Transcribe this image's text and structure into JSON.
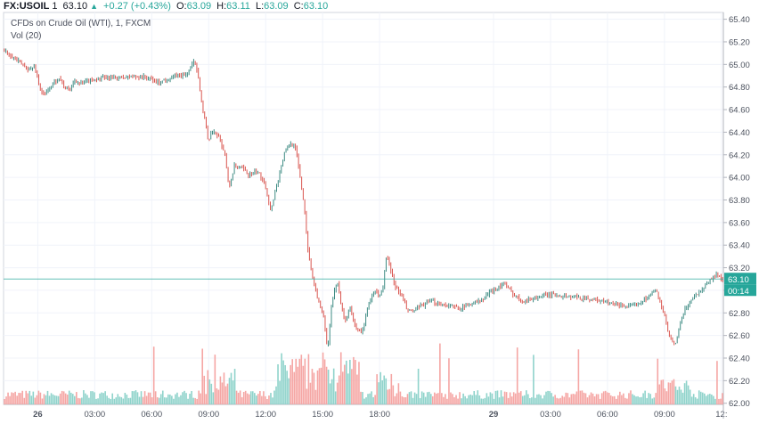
{
  "header": {
    "symbol": "FX:USOIL",
    "interval": "1",
    "last": "63.10",
    "change": "+0.27 (+0.43%)",
    "o_label": "O:",
    "o_value": "63.09",
    "h_label": "H:",
    "h_value": "63.11",
    "l_label": "L:",
    "l_value": "63.09",
    "c_label": "C:",
    "c_value": "63.10"
  },
  "legend": {
    "title": "CFDs on Crude Oil (WTI), 1, FXCM",
    "volume_indicator": "Vol (20)"
  },
  "price_badge": {
    "value": "63.10",
    "countdown": "00:14"
  },
  "colors": {
    "up": "#26a69a",
    "down": "#ef5350",
    "vol_up": "#8fd3cb",
    "vol_down": "#f5a6a4",
    "grid": "#f0f3fa",
    "price_line": "#26a69a",
    "axis_text": "#4c525e"
  },
  "chart_data": {
    "type": "line",
    "title": "CFDs on Crude Oil (WTI), 1, FXCM",
    "y_axis": {
      "ticks": [
        "65.40",
        "65.20",
        "65.00",
        "64.80",
        "64.60",
        "64.40",
        "64.20",
        "64.00",
        "63.80",
        "63.60",
        "63.40",
        "63.20",
        "63.00",
        "62.80",
        "62.60",
        "62.40",
        "62.20",
        "62.00"
      ],
      "range": [
        61.99,
        65.46
      ]
    },
    "x_axis": {
      "ticks": [
        "26",
        "03:00",
        "06:00",
        "09:00",
        "12:00",
        "15:00",
        "18:00",
        "29",
        "03:00",
        "06:00",
        "09:00",
        "12:"
      ],
      "tick_hours": [
        0,
        3,
        6,
        9,
        12,
        15,
        18,
        24,
        27,
        30,
        33,
        36
      ],
      "range_hours": [
        -1.8,
        36.1
      ]
    },
    "series": [
      {
        "values_by_hour": [
          [
            -1.8,
            65.12
          ],
          [
            -1.5,
            65.1
          ],
          [
            -1.2,
            65.06
          ],
          [
            -0.8,
            65.0
          ],
          [
            -0.4,
            64.95
          ],
          [
            -0.1,
            64.98
          ],
          [
            0.0,
            64.9
          ],
          [
            0.2,
            64.76
          ],
          [
            0.4,
            64.73
          ],
          [
            0.8,
            64.82
          ],
          [
            1.2,
            64.89
          ],
          [
            1.4,
            64.8
          ],
          [
            1.7,
            64.78
          ],
          [
            2.0,
            64.86
          ],
          [
            2.3,
            64.83
          ],
          [
            2.8,
            64.86
          ],
          [
            3.5,
            64.88
          ],
          [
            4.2,
            64.88
          ],
          [
            5.0,
            64.89
          ],
          [
            5.6,
            64.89
          ],
          [
            6.0,
            64.87
          ],
          [
            6.4,
            64.84
          ],
          [
            6.9,
            64.87
          ],
          [
            7.4,
            64.9
          ],
          [
            7.8,
            64.9
          ],
          [
            8.1,
            64.97
          ],
          [
            8.3,
            65.03
          ],
          [
            8.5,
            64.9
          ],
          [
            8.7,
            64.62
          ],
          [
            8.9,
            64.45
          ],
          [
            9.0,
            64.32
          ],
          [
            9.3,
            64.42
          ],
          [
            9.6,
            64.35
          ],
          [
            9.9,
            64.2
          ],
          [
            10.1,
            63.9
          ],
          [
            10.4,
            64.1
          ],
          [
            10.8,
            64.08
          ],
          [
            11.2,
            64.02
          ],
          [
            11.6,
            64.05
          ],
          [
            12.0,
            63.95
          ],
          [
            12.3,
            63.7
          ],
          [
            12.5,
            63.85
          ],
          [
            12.8,
            64.05
          ],
          [
            13.0,
            64.2
          ],
          [
            13.3,
            64.3
          ],
          [
            13.6,
            64.28
          ],
          [
            13.9,
            63.95
          ],
          [
            14.1,
            63.7
          ],
          [
            14.3,
            63.3
          ],
          [
            14.6,
            63.05
          ],
          [
            14.9,
            62.85
          ],
          [
            15.1,
            62.75
          ],
          [
            15.3,
            62.45
          ],
          [
            15.5,
            62.85
          ],
          [
            15.8,
            63.1
          ],
          [
            16.0,
            62.9
          ],
          [
            16.2,
            62.72
          ],
          [
            16.5,
            62.85
          ],
          [
            16.8,
            62.65
          ],
          [
            17.1,
            62.62
          ],
          [
            17.5,
            62.9
          ],
          [
            17.8,
            63.0
          ],
          [
            18.0,
            62.95
          ],
          [
            18.2,
            63.0
          ],
          [
            18.4,
            63.32
          ],
          [
            18.6,
            63.18
          ],
          [
            18.9,
            63.02
          ],
          [
            19.2,
            62.95
          ],
          [
            19.5,
            62.82
          ],
          [
            19.9,
            62.82
          ],
          [
            20.3,
            62.87
          ],
          [
            20.8,
            62.9
          ],
          [
            21.3,
            62.88
          ],
          [
            21.8,
            62.86
          ],
          [
            22.3,
            62.84
          ],
          [
            22.8,
            62.88
          ],
          [
            23.2,
            62.9
          ],
          [
            23.5,
            62.92
          ],
          [
            23.8,
            62.98
          ],
          [
            24.2,
            63.02
          ],
          [
            24.6,
            63.06
          ],
          [
            25.0,
            62.98
          ],
          [
            25.5,
            62.91
          ],
          [
            26.0,
            62.92
          ],
          [
            26.6,
            62.95
          ],
          [
            27.2,
            62.96
          ],
          [
            27.7,
            62.95
          ],
          [
            28.2,
            62.94
          ],
          [
            28.8,
            62.93
          ],
          [
            29.3,
            62.92
          ],
          [
            29.8,
            62.9
          ],
          [
            30.3,
            62.88
          ],
          [
            30.8,
            62.87
          ],
          [
            31.3,
            62.85
          ],
          [
            31.8,
            62.9
          ],
          [
            32.2,
            62.95
          ],
          [
            32.6,
            63.0
          ],
          [
            33.0,
            62.8
          ],
          [
            33.2,
            62.65
          ],
          [
            33.4,
            62.55
          ],
          [
            33.6,
            62.5
          ],
          [
            33.8,
            62.67
          ],
          [
            34.1,
            62.82
          ],
          [
            34.5,
            62.93
          ],
          [
            35.0,
            63.01
          ],
          [
            35.5,
            63.1
          ],
          [
            35.8,
            63.14
          ],
          [
            36.1,
            63.1
          ]
        ]
      }
    ],
    "current_price": 63.1,
    "volume": {
      "label": "Vol (20)"
    },
    "grid": true,
    "legend": "top-left"
  }
}
